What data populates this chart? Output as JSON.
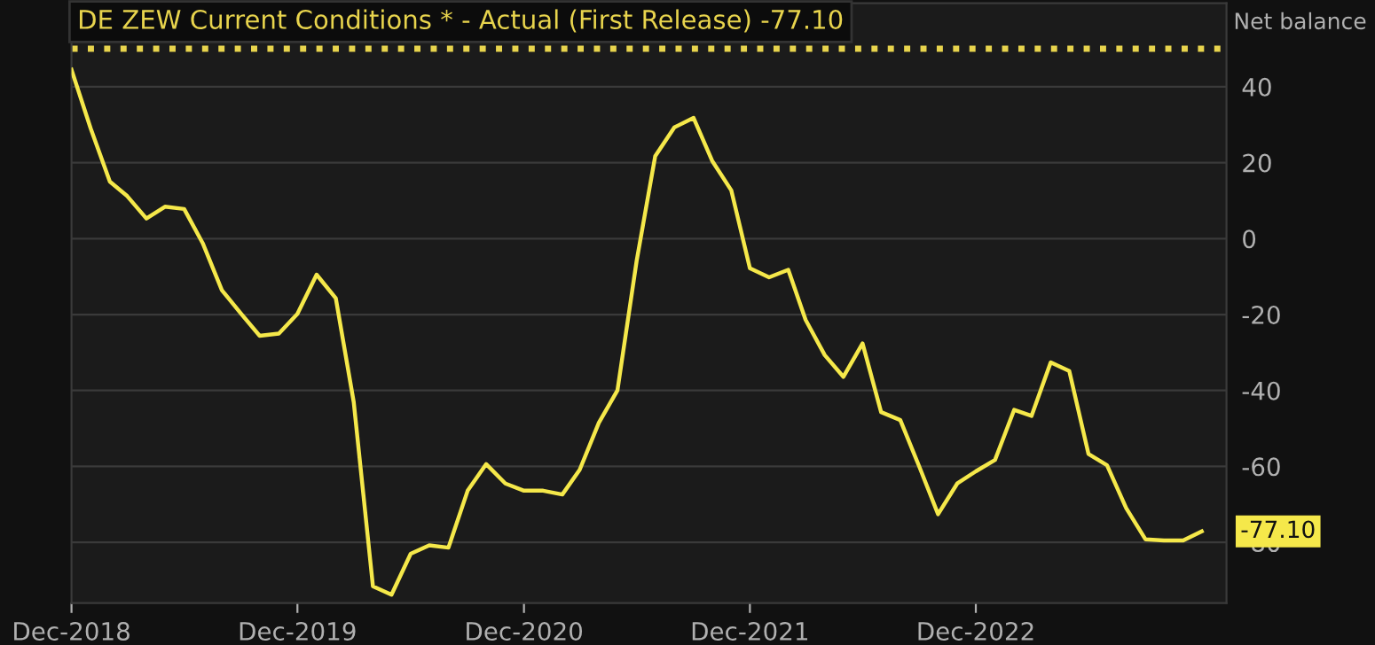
{
  "chart_data": {
    "type": "line",
    "title": "DE ZEW Current Conditions * - Actual (First Release) -77.10",
    "ylabel": "Net balance",
    "x": [
      "2018-12",
      "2019-01",
      "2019-02",
      "2019-03",
      "2019-04",
      "2019-05",
      "2019-06",
      "2019-07",
      "2019-08",
      "2019-09",
      "2019-10",
      "2019-11",
      "2019-12",
      "2020-01",
      "2020-02",
      "2020-03",
      "2020-04",
      "2020-05",
      "2020-06",
      "2020-07",
      "2020-08",
      "2020-09",
      "2020-10",
      "2020-11",
      "2020-12",
      "2021-01",
      "2021-02",
      "2021-03",
      "2021-04",
      "2021-05",
      "2021-06",
      "2021-07",
      "2021-08",
      "2021-09",
      "2021-10",
      "2021-11",
      "2021-12",
      "2022-01",
      "2022-02",
      "2022-03",
      "2022-04",
      "2022-05",
      "2022-06",
      "2022-07",
      "2022-08",
      "2022-09",
      "2022-10",
      "2022-11",
      "2022-12",
      "2023-01",
      "2023-02",
      "2023-03",
      "2023-04",
      "2023-05",
      "2023-06",
      "2023-07",
      "2023-08",
      "2023-09",
      "2023-10",
      "2023-11",
      "2023-12"
    ],
    "series": [
      {
        "color": "#f5e84a",
        "values": [
          44.5,
          29.0,
          15.0,
          11.2,
          5.3,
          8.4,
          7.8,
          -1.2,
          -13.6,
          -19.8,
          -25.6,
          -25.0,
          -19.8,
          -9.5,
          -15.7,
          -43.1,
          -91.6,
          -93.8,
          -83.0,
          -80.8,
          -81.4,
          -66.4,
          -59.4,
          -64.5,
          -66.4,
          -66.4,
          -67.4,
          -60.9,
          -48.5,
          -40.0,
          -5.9,
          21.7,
          29.3,
          31.8,
          20.5,
          12.7,
          -7.8,
          -10.2,
          -8.2,
          -21.4,
          -30.7,
          -36.4,
          -27.6,
          -45.7,
          -47.8,
          -60.2,
          -72.6,
          -64.5,
          -61.3,
          -58.3,
          -45.1,
          -46.7,
          -32.6,
          -34.9,
          -56.7,
          -59.7,
          -71.0,
          -79.2,
          -79.5,
          -79.5,
          -77.1
        ]
      }
    ],
    "xlim": [
      "2018-12-01",
      "2024-01-10"
    ],
    "xticks": [
      {
        "value": "2018-12",
        "label": "Dec-2018"
      },
      {
        "value": "2019-12",
        "label": "Dec-2019"
      },
      {
        "value": "2020-12",
        "label": "Dec-2020"
      },
      {
        "value": "2021-12",
        "label": "Dec-2021"
      },
      {
        "value": "2022-12",
        "label": "Dec-2022"
      }
    ],
    "ylim": [
      -96,
      62
    ],
    "yticks": [
      -80,
      -60,
      -40,
      -20,
      0,
      20,
      40
    ],
    "grid": "y",
    "marker": "none",
    "line_style": "solid",
    "ref_lines": [
      {
        "axis": "y",
        "value": 50,
        "color": "#e8d44d",
        "line_style": "dotted"
      }
    ],
    "annotations": [
      {
        "text": "-77.10",
        "x": "2023-12",
        "y": -77.1
      }
    ]
  }
}
